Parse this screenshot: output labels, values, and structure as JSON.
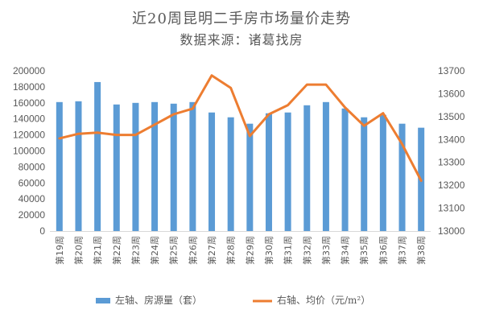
{
  "chart_data": {
    "type": "bar+line",
    "title": "近20周昆明二手房市场量价走势",
    "subtitle": "数据来源：诸葛找房",
    "categories": [
      "第19周",
      "第20周",
      "第21周",
      "第22周",
      "第23周",
      "第24周",
      "第25周",
      "第26周",
      "第27周",
      "第28周",
      "第29周",
      "第30周",
      "第31周",
      "第32周",
      "第33周",
      "第34周",
      "第35周",
      "第36周",
      "第37周",
      "第38周"
    ],
    "series": [
      {
        "name": "左轴、房源量（套）",
        "type": "bar",
        "axis": "left",
        "color": "#5b9bd5",
        "values": [
          161000,
          162000,
          186000,
          158000,
          160000,
          161000,
          159000,
          161000,
          148000,
          142000,
          134000,
          147000,
          148000,
          157000,
          161000,
          153000,
          142000,
          145000,
          134000,
          129000
        ]
      },
      {
        "name": "右轴、均价（元/m²）",
        "type": "line",
        "axis": "right",
        "color": "#ed7d31",
        "values": [
          13405,
          13425,
          13430,
          13420,
          13420,
          13465,
          13510,
          13535,
          13680,
          13625,
          13415,
          13510,
          13550,
          13640,
          13640,
          13540,
          13460,
          13515,
          13380,
          13220
        ]
      }
    ],
    "y_left": {
      "min": 0,
      "max": 200000,
      "step": 20000
    },
    "y_right": {
      "min": 13000,
      "max": 13700,
      "step": 100
    },
    "grid": false,
    "legend": "bottom"
  }
}
